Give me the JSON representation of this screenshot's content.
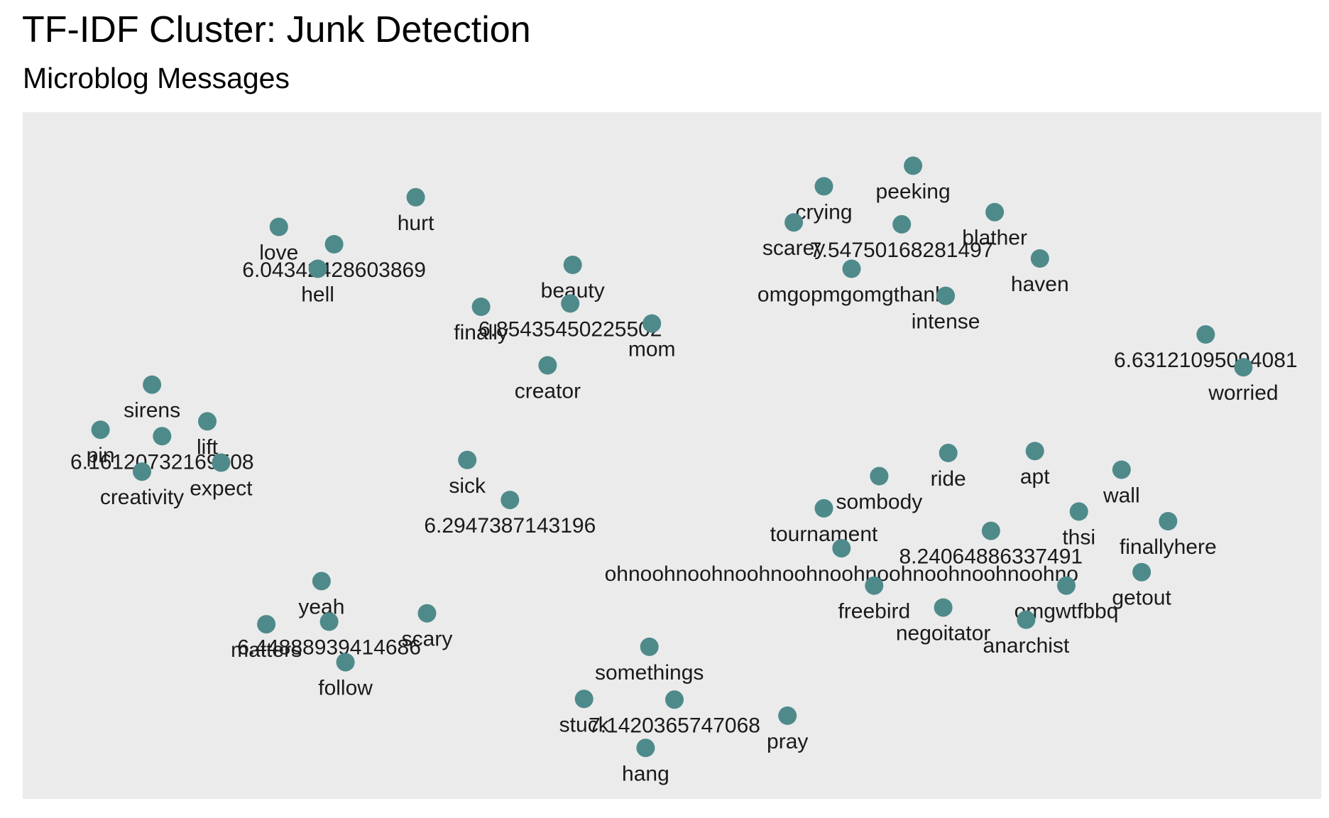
{
  "header": {
    "title": "TF-IDF Cluster: Junk Detection",
    "subtitle": "Microblog Messages"
  },
  "colors": {
    "panel_background": "#ebebeb",
    "point": "#4f8a8b",
    "label": "#1a1a1a"
  },
  "chart_data": {
    "type": "scatter",
    "title": "TF-IDF Cluster: Junk Detection",
    "subtitle": "Microblog Messages",
    "xlabel": "",
    "ylabel": "",
    "grid": false,
    "axes_visible": false,
    "xlim": [
      0,
      1000
    ],
    "ylim": [
      0,
      1000
    ],
    "points": [
      {
        "label": "hurt",
        "x": 296,
        "y": 901
      },
      {
        "label": "love",
        "x": 187,
        "y": 855
      },
      {
        "label": "6.04342428603869",
        "x": 231,
        "y": 828
      },
      {
        "label": "hell",
        "x": 218,
        "y": 790
      },
      {
        "label": "beauty",
        "x": 421,
        "y": 796
      },
      {
        "label": "finally",
        "x": 348,
        "y": 731
      },
      {
        "label": "6.8543545022550​2",
        "x": 419,
        "y": 736
      },
      {
        "label": "mom",
        "x": 484,
        "y": 705
      },
      {
        "label": "creator",
        "x": 401,
        "y": 640
      },
      {
        "label": "peeking",
        "x": 692,
        "y": 950
      },
      {
        "label": "crying",
        "x": 621,
        "y": 918
      },
      {
        "label": "blather",
        "x": 757,
        "y": 878
      },
      {
        "label": "scarey",
        "x": 597,
        "y": 862
      },
      {
        "label": "7.5475016828149​7",
        "x": 683,
        "y": 859
      },
      {
        "label": "haven",
        "x": 793,
        "y": 806
      },
      {
        "label": "omgopmgomgthank",
        "x": 643,
        "y": 790
      },
      {
        "label": "intense",
        "x": 718,
        "y": 748
      },
      {
        "label": "6.6312109509408​1",
        "x": 925,
        "y": 688
      },
      {
        "label": "worried",
        "x": 955,
        "y": 637
      },
      {
        "label": "sirens",
        "x": 86,
        "y": 610
      },
      {
        "label": "lift",
        "x": 130,
        "y": 553
      },
      {
        "label": "pin",
        "x": 45,
        "y": 540
      },
      {
        "label": "6.16120732169508",
        "x": 94,
        "y": 530
      },
      {
        "label": "expect",
        "x": 141,
        "y": 489
      },
      {
        "label": "creativity",
        "x": 78,
        "y": 475
      },
      {
        "label": "sick",
        "x": 337,
        "y": 493
      },
      {
        "label": "6.2947387143196",
        "x": 371,
        "y": 431
      },
      {
        "label": "ride",
        "x": 720,
        "y": 504
      },
      {
        "label": "apt",
        "x": 789,
        "y": 507
      },
      {
        "label": "sombody",
        "x": 665,
        "y": 468
      },
      {
        "label": "wall",
        "x": 858,
        "y": 478
      },
      {
        "label": "tournament",
        "x": 621,
        "y": 418
      },
      {
        "label": "thsi",
        "x": 824,
        "y": 413
      },
      {
        "label": "finallyhere",
        "x": 895,
        "y": 398
      },
      {
        "label": "8.24064886337491",
        "x": 754,
        "y": 383
      },
      {
        "label": "ohnoohnoohnoohnoohnoohnoohnoohnoohnoohno",
        "x": 635,
        "y": 356
      },
      {
        "label": "getout",
        "x": 874,
        "y": 319
      },
      {
        "label": "freebird",
        "x": 661,
        "y": 298
      },
      {
        "label": "omgwtfbbq",
        "x": 814,
        "y": 298
      },
      {
        "label": "negoitator",
        "x": 716,
        "y": 264
      },
      {
        "label": "anarchist",
        "x": 782,
        "y": 245
      },
      {
        "label": "yeah",
        "x": 221,
        "y": 305
      },
      {
        "label": "scary",
        "x": 305,
        "y": 255
      },
      {
        "label": "matters",
        "x": 177,
        "y": 238
      },
      {
        "label": "6.44888939414686",
        "x": 227,
        "y": 242
      },
      {
        "label": "follow",
        "x": 240,
        "y": 179
      },
      {
        "label": "somethings",
        "x": 482,
        "y": 203
      },
      {
        "label": "stuck",
        "x": 430,
        "y": 122
      },
      {
        "label": "7.1420365747068",
        "x": 502,
        "y": 121
      },
      {
        "label": "pray",
        "x": 592,
        "y": 96
      },
      {
        "label": "hang",
        "x": 479,
        "y": 46
      }
    ]
  }
}
